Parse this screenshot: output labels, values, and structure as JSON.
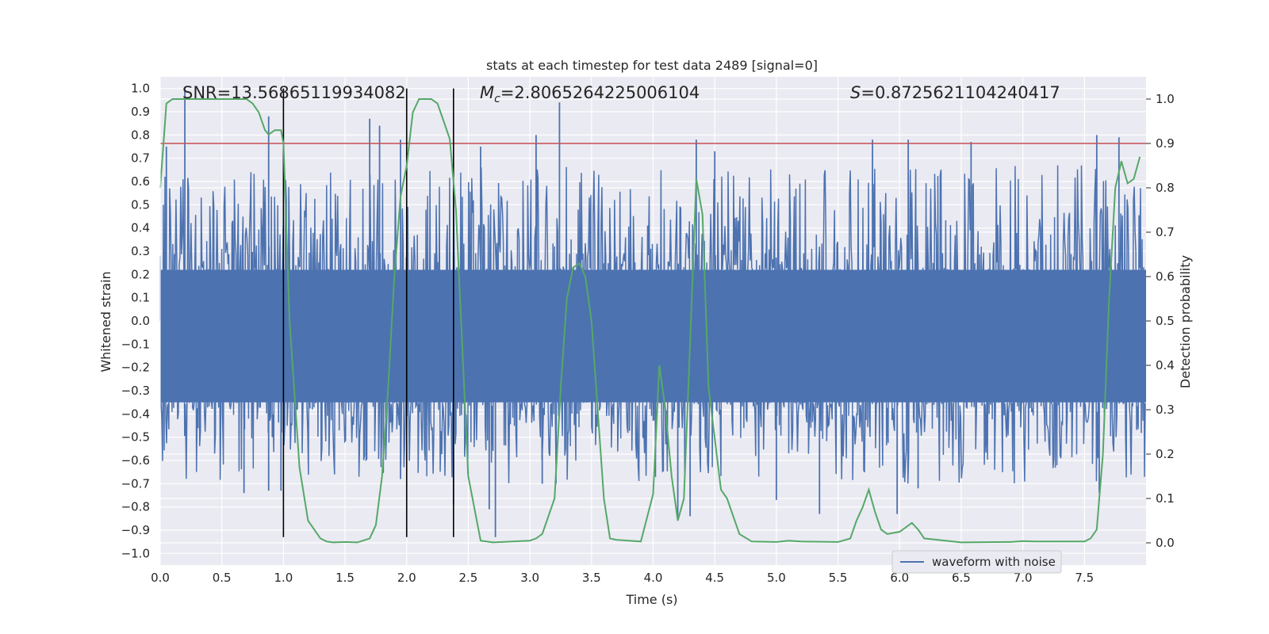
{
  "chart_data": {
    "type": "line",
    "title": "stats at each timestep for test data 2489 [signal=0]",
    "xlabel": "Time (s)",
    "ylabel": "Whitened strain",
    "y2label": "Detection probability",
    "xlim": [
      0,
      8.0
    ],
    "ylim": [
      -1.05,
      1.05
    ],
    "y2lim": [
      -0.05,
      1.05
    ],
    "grid": true,
    "legend": {
      "placement": "lower center",
      "entries": [
        "waveform with noise"
      ]
    },
    "annotations": {
      "snr": "SNR=13.56865119934082",
      "mc_symbol": "M",
      "mc_subscript": "c",
      "mc_value": "=2.8065264225006104",
      "s_symbol": "S",
      "s_value": "=0.8725621104240417"
    },
    "xticks": [
      "0.0",
      "0.5",
      "1.0",
      "1.5",
      "2.0",
      "2.5",
      "3.0",
      "3.5",
      "4.0",
      "4.5",
      "5.0",
      "5.5",
      "6.0",
      "6.5",
      "7.0",
      "7.5"
    ],
    "yticks": [
      "1.0",
      "0.9",
      "0.8",
      "0.7",
      "0.6",
      "0.5",
      "0.4",
      "0.3",
      "0.2",
      "0.1",
      "0.0",
      "−0.1",
      "−0.2",
      "−0.3",
      "−0.4",
      "−0.5",
      "−0.6",
      "−0.7",
      "−0.8",
      "−0.9",
      "−1.0"
    ],
    "y2ticks": [
      "1.0",
      "0.9",
      "0.8",
      "0.7",
      "0.6",
      "0.5",
      "0.4",
      "0.3",
      "0.2",
      "0.1",
      "0.0"
    ],
    "threshold": 0.9,
    "vlines": [
      1.0,
      2.0,
      2.38
    ],
    "vline_range": [
      -0.93,
      1.0
    ],
    "waveform": {
      "name": "waveform with noise",
      "color": "#4c72b0",
      "core_band": [
        -0.35,
        0.22
      ],
      "upper_peaks": [
        {
          "x": 0.2,
          "y": 1.0
        },
        {
          "x": 0.88,
          "y": 0.88
        },
        {
          "x": 1.7,
          "y": 0.87
        },
        {
          "x": 1.78,
          "y": 0.84
        },
        {
          "x": 3.24,
          "y": 0.94
        },
        {
          "x": 3.05,
          "y": 0.8
        },
        {
          "x": 1.95,
          "y": 0.78
        },
        {
          "x": 0.05,
          "y": 0.75
        },
        {
          "x": 7.6,
          "y": 0.8
        },
        {
          "x": 7.78,
          "y": 0.79
        },
        {
          "x": 6.07,
          "y": 0.78
        },
        {
          "x": 4.35,
          "y": 0.78
        },
        {
          "x": 2.6,
          "y": 0.75
        },
        {
          "x": 5.78,
          "y": 0.78
        },
        {
          "x": 6.58,
          "y": 0.77
        },
        {
          "x": 4.5,
          "y": 0.73
        }
      ],
      "lower_peaks": [
        {
          "x": 2.72,
          "y": -0.93
        },
        {
          "x": 2.38,
          "y": -0.79
        },
        {
          "x": 0.68,
          "y": -0.74
        },
        {
          "x": 0.88,
          "y": -0.73
        },
        {
          "x": 4.2,
          "y": -0.85
        },
        {
          "x": 5.35,
          "y": -0.83
        },
        {
          "x": 4.3,
          "y": -0.84
        },
        {
          "x": 5.98,
          "y": -0.83
        },
        {
          "x": 7.62,
          "y": -0.74
        },
        {
          "x": 0.98,
          "y": -0.73
        },
        {
          "x": 1.95,
          "y": -0.68
        },
        {
          "x": 5.0,
          "y": -0.77
        },
        {
          "x": 2.67,
          "y": -0.81
        },
        {
          "x": 3.1,
          "y": -0.7
        },
        {
          "x": 6.15,
          "y": -0.72
        }
      ]
    },
    "probability": {
      "color": "#55a868",
      "x": [
        0.0,
        0.05,
        0.1,
        0.2,
        0.3,
        0.4,
        0.5,
        0.6,
        0.7,
        0.75,
        0.8,
        0.85,
        0.88,
        0.93,
        0.98,
        1.0,
        1.05,
        1.13,
        1.2,
        1.3,
        1.35,
        1.4,
        1.5,
        1.6,
        1.7,
        1.75,
        1.8,
        1.85,
        1.9,
        1.95,
        2.0,
        2.05,
        2.1,
        2.15,
        2.2,
        2.25,
        2.3,
        2.35,
        2.4,
        2.5,
        2.6,
        2.7,
        3.0,
        3.05,
        3.1,
        3.2,
        3.25,
        3.3,
        3.35,
        3.4,
        3.45,
        3.5,
        3.55,
        3.6,
        3.65,
        3.7,
        3.8,
        3.9,
        4.0,
        4.05,
        4.1,
        4.15,
        4.2,
        4.25,
        4.3,
        4.35,
        4.4,
        4.45,
        4.55,
        4.6,
        4.7,
        4.8,
        5.0,
        5.1,
        5.2,
        5.5,
        5.6,
        5.65,
        5.7,
        5.75,
        5.8,
        5.85,
        5.9,
        6.0,
        6.05,
        6.1,
        6.15,
        6.2,
        6.5,
        6.9,
        7.0,
        7.1,
        7.5,
        7.55,
        7.6,
        7.65,
        7.7,
        7.75,
        7.8,
        7.85,
        7.9,
        7.95
      ],
      "y": [
        0.8,
        0.99,
        1.0,
        1.0,
        1.0,
        1.0,
        1.0,
        1.0,
        1.0,
        0.99,
        0.97,
        0.93,
        0.92,
        0.93,
        0.93,
        0.9,
        0.5,
        0.17,
        0.05,
        0.01,
        0.003,
        0.001,
        0.002,
        0.001,
        0.01,
        0.04,
        0.15,
        0.35,
        0.6,
        0.78,
        0.85,
        0.97,
        1.0,
        1.0,
        1.0,
        0.99,
        0.95,
        0.91,
        0.75,
        0.15,
        0.005,
        0.001,
        0.005,
        0.01,
        0.02,
        0.1,
        0.35,
        0.55,
        0.62,
        0.63,
        0.6,
        0.5,
        0.3,
        0.1,
        0.01,
        0.007,
        0.005,
        0.003,
        0.11,
        0.4,
        0.3,
        0.15,
        0.05,
        0.1,
        0.45,
        0.82,
        0.74,
        0.35,
        0.12,
        0.1,
        0.02,
        0.003,
        0.002,
        0.005,
        0.003,
        0.002,
        0.01,
        0.05,
        0.08,
        0.12,
        0.07,
        0.03,
        0.02,
        0.025,
        0.035,
        0.045,
        0.03,
        0.01,
        0.001,
        0.002,
        0.004,
        0.003,
        0.003,
        0.01,
        0.03,
        0.2,
        0.55,
        0.8,
        0.86,
        0.81,
        0.82,
        0.87
      ]
    }
  }
}
